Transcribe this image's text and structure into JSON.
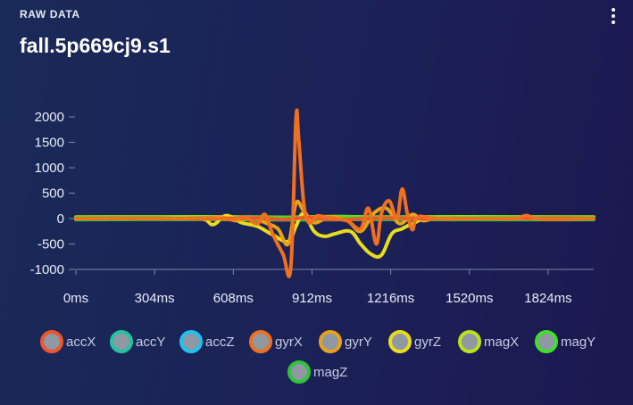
{
  "header": {
    "section_label": "RAW DATA",
    "title": "fall.5p669cj9.s1",
    "menu_icon": "more-vert-icon"
  },
  "chart_data": {
    "type": "line",
    "x_tick_labels": [
      "0ms",
      "304ms",
      "608ms",
      "912ms",
      "1216ms",
      "1520ms",
      "1824ms"
    ],
    "x_ticks": [
      0,
      304,
      608,
      912,
      1216,
      1520,
      1824
    ],
    "y_tick_labels": [
      "2000",
      "1500",
      "1000",
      "500",
      "0",
      "-500",
      "-1000"
    ],
    "y_ticks": [
      2000,
      1500,
      1000,
      500,
      0,
      -500,
      -1000
    ],
    "xlim": [
      0,
      2000
    ],
    "ylim": [
      -1000,
      2000
    ],
    "grid": false,
    "legend_position": "bottom",
    "series": [
      {
        "name": "accX",
        "color": "#f0552b",
        "x": [
          0,
          300,
          500,
          700,
          800,
          900,
          1000,
          1200,
          1400,
          1600,
          1800,
          2000
        ],
        "values": [
          0,
          5,
          -5,
          10,
          -15,
          20,
          -20,
          10,
          -5,
          0,
          5,
          0
        ]
      },
      {
        "name": "accY",
        "color": "#22c4a0",
        "x": [
          0,
          400,
          800,
          1200,
          1600,
          2000
        ],
        "values": [
          0,
          0,
          5,
          -5,
          0,
          0
        ]
      },
      {
        "name": "accZ",
        "color": "#1ec2ea",
        "x": [
          0,
          400,
          800,
          1200,
          1600,
          2000
        ],
        "values": [
          0,
          0,
          -5,
          5,
          0,
          0
        ]
      },
      {
        "name": "gyrX",
        "color": "#f07020",
        "x": [
          0,
          250,
          400,
          530,
          600,
          650,
          700,
          730,
          760,
          800,
          830,
          850,
          860,
          880,
          900,
          930,
          960,
          1000,
          1050,
          1100,
          1130,
          1160,
          1180,
          1210,
          1240,
          1260,
          1280,
          1300,
          1320,
          1400,
          1600,
          1700,
          1740,
          1800,
          2000
        ],
        "values": [
          0,
          0,
          0,
          10,
          -20,
          30,
          -100,
          80,
          -300,
          -700,
          -960,
          1950,
          1600,
          300,
          -80,
          50,
          30,
          0,
          -50,
          -200,
          200,
          -500,
          100,
          350,
          0,
          580,
          100,
          -220,
          30,
          0,
          0,
          0,
          60,
          -10,
          0
        ]
      },
      {
        "name": "gyrY",
        "color": "#e8a217",
        "x": [
          0,
          300,
          500,
          560,
          620,
          680,
          730,
          780,
          820,
          850,
          880,
          920,
          980,
          1050,
          1100,
          1150,
          1200,
          1250,
          1300,
          1340,
          1400,
          1600,
          2000
        ],
        "values": [
          0,
          0,
          0,
          30,
          -40,
          20,
          -80,
          -200,
          -500,
          300,
          150,
          -80,
          30,
          -50,
          -250,
          100,
          200,
          -100,
          80,
          -40,
          0,
          0,
          0
        ]
      },
      {
        "name": "gyrZ",
        "color": "#e8dc1c",
        "x": [
          0,
          300,
          480,
          530,
          580,
          640,
          700,
          760,
          820,
          850,
          880,
          920,
          960,
          1000,
          1060,
          1100,
          1140,
          1180,
          1220,
          1260,
          1300,
          1360,
          1500,
          2000
        ],
        "values": [
          0,
          0,
          0,
          -120,
          60,
          -80,
          -150,
          -320,
          -450,
          -150,
          100,
          -250,
          -350,
          -300,
          -250,
          -500,
          -700,
          -720,
          -300,
          -200,
          -100,
          0,
          0,
          0
        ]
      },
      {
        "name": "magX",
        "color": "#b9e21a",
        "x": [
          0,
          500,
          800,
          1000,
          1200,
          1500,
          2000
        ],
        "values": [
          30,
          35,
          25,
          40,
          30,
          35,
          30
        ]
      },
      {
        "name": "magY",
        "color": "#3ee02a",
        "x": [
          0,
          500,
          800,
          1000,
          1200,
          1500,
          2000
        ],
        "values": [
          20,
          25,
          20,
          30,
          25,
          25,
          20
        ]
      },
      {
        "name": "magZ",
        "color": "#2fc43a",
        "x": [
          0,
          500,
          800,
          1000,
          1200,
          1500,
          2000
        ],
        "values": [
          -20,
          -15,
          -25,
          -20,
          -15,
          -20,
          -20
        ]
      }
    ]
  },
  "legend": [
    {
      "label": "accX",
      "color": "#f0552b"
    },
    {
      "label": "accY",
      "color": "#22c4a0"
    },
    {
      "label": "accZ",
      "color": "#1ec2ea"
    },
    {
      "label": "gyrX",
      "color": "#f07020"
    },
    {
      "label": "gyrY",
      "color": "#e8a217"
    },
    {
      "label": "gyrZ",
      "color": "#e8dc1c"
    },
    {
      "label": "magX",
      "color": "#b9e21a"
    },
    {
      "label": "magY",
      "color": "#3ee02a"
    },
    {
      "label": "magZ",
      "color": "#2fc43a"
    }
  ]
}
